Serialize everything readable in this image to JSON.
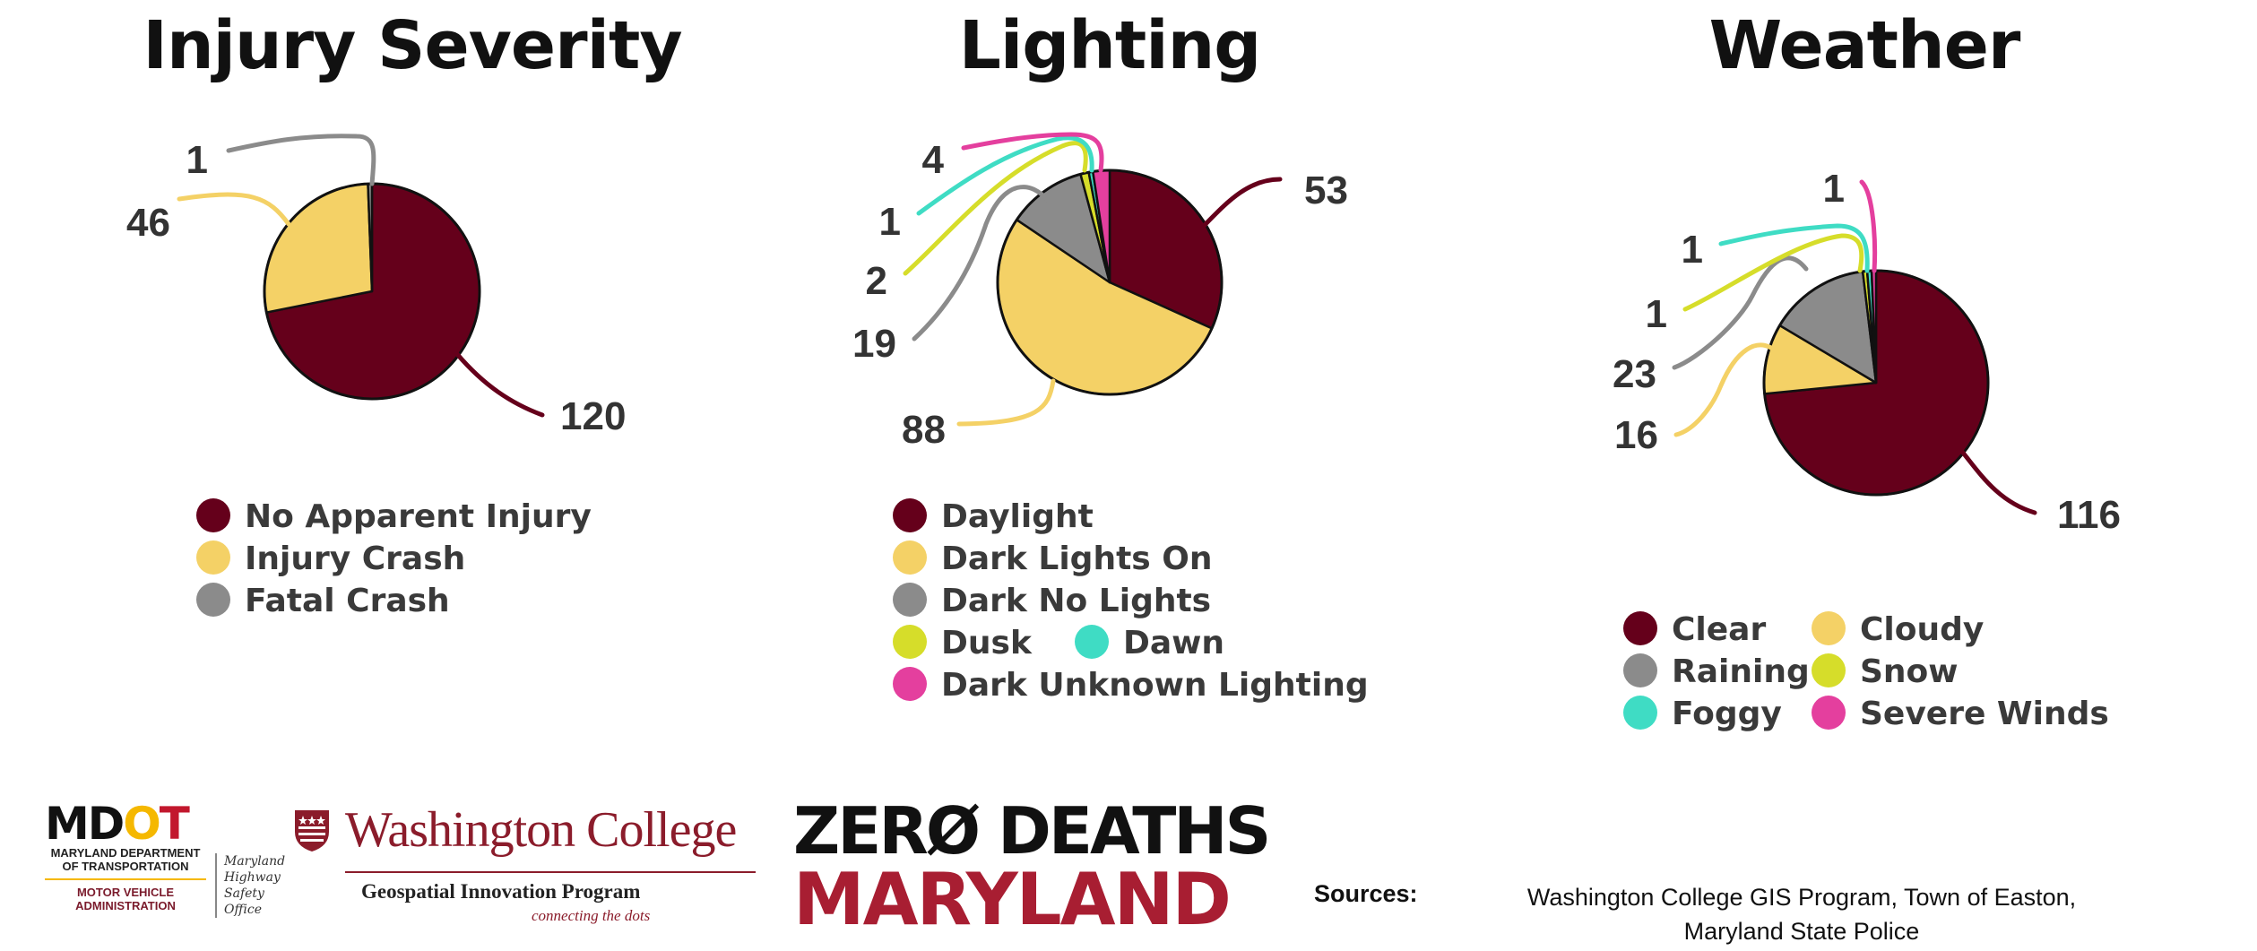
{
  "chart_data": [
    {
      "type": "pie",
      "title": "Injury Severity",
      "slices": [
        {
          "label": "No Apparent Injury",
          "value": 120,
          "color": "#65001b"
        },
        {
          "label": "Injury Crash",
          "value": 46,
          "color": "#f4d166"
        },
        {
          "label": "Fatal Crash",
          "value": 1,
          "color": "#8b8b8b"
        }
      ],
      "value_labels": [
        "120",
        "46",
        "1"
      ]
    },
    {
      "type": "pie",
      "title": "Lighting",
      "slices": [
        {
          "label": "Daylight",
          "value": 53,
          "color": "#65001b"
        },
        {
          "label": "Dark Lights On",
          "value": 88,
          "color": "#f4d166"
        },
        {
          "label": "Dark No Lights",
          "value": 19,
          "color": "#8b8b8b"
        },
        {
          "label": "Dusk",
          "value": 2,
          "color": "#d6dd2a"
        },
        {
          "label": "Dawn",
          "value": 1,
          "color": "#3fdcc4"
        },
        {
          "label": "Dark Unknown Lighting",
          "value": 4,
          "color": "#e43f9e"
        }
      ],
      "value_labels": [
        "53",
        "88",
        "19",
        "2",
        "1",
        "4"
      ]
    },
    {
      "type": "pie",
      "title": "Weather",
      "slices": [
        {
          "label": "Clear",
          "value": 116,
          "color": "#65001b"
        },
        {
          "label": "Cloudy",
          "value": 16,
          "color": "#f4d166"
        },
        {
          "label": "Raining",
          "value": 23,
          "color": "#8b8b8b"
        },
        {
          "label": "Snow",
          "value": 1,
          "color": "#d6dd2a"
        },
        {
          "label": "Foggy",
          "value": 1,
          "color": "#3fdcc4"
        },
        {
          "label": "Severe Winds",
          "value": 1,
          "color": "#e43f9e"
        }
      ],
      "value_labels": [
        "116",
        "16",
        "23",
        "1",
        "1",
        "1"
      ]
    }
  ],
  "footer": {
    "mdot": {
      "logo_m": "M",
      "logo_d": "D",
      "logo_o": "O",
      "logo_t": "T",
      "department": "MARYLAND DEPARTMENT OF TRANSPORTATION",
      "administration": "MOTOR VEHICLE ADMINISTRATION",
      "office_1": "Maryland",
      "office_2": "Highway",
      "office_3": "Safety",
      "office_4": "Office"
    },
    "wc": {
      "name": "Washington College",
      "program": "Geospatial Innovation Program",
      "tagline": "connecting the dots"
    },
    "zero_deaths": {
      "line1": "ZERØ DEATHS",
      "line2": "MARYLAND"
    },
    "sources_label": "Sources:",
    "sources_line1": "Washington College GIS Program, Town of Easton,",
    "sources_line2": "Maryland State Police"
  }
}
